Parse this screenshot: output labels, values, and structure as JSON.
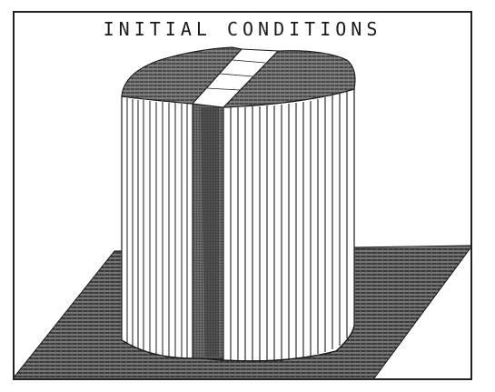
{
  "figure": {
    "title": "INITIAL CONDITIONS",
    "line_color": "#1a1a1a",
    "background": "#ffffff"
  }
}
